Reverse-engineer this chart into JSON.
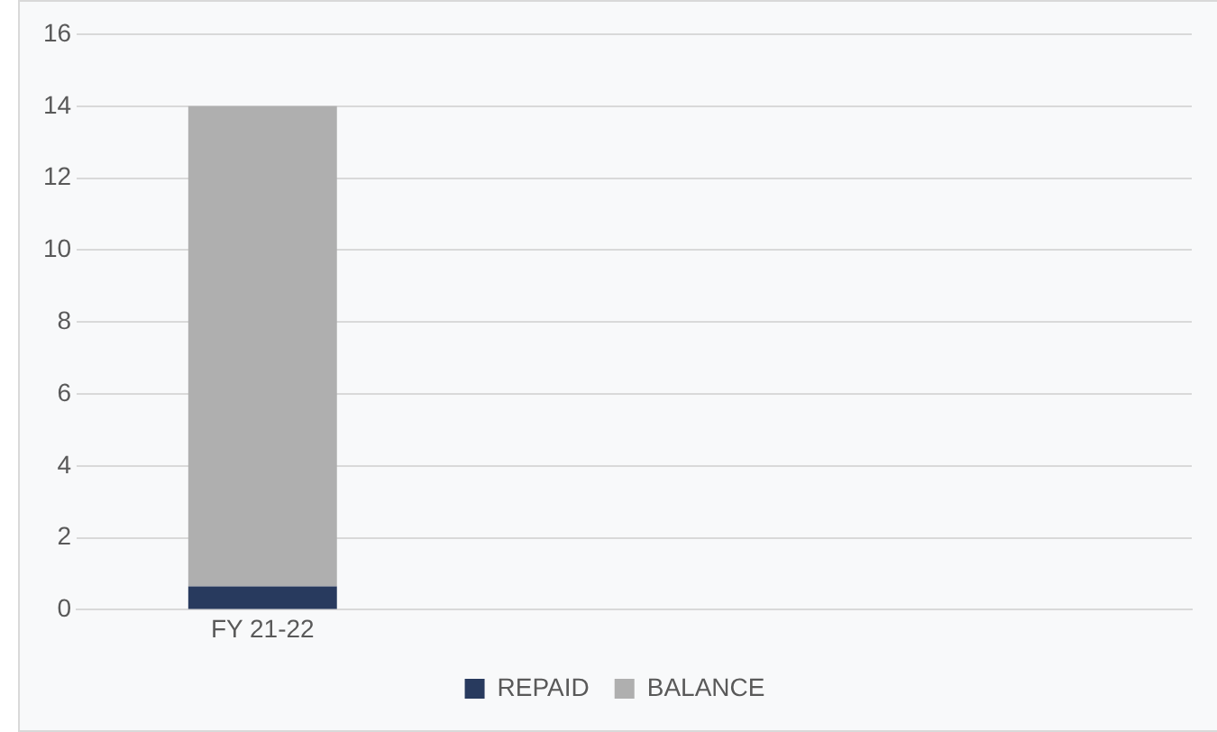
{
  "chart_data": {
    "type": "bar",
    "stacked": true,
    "categories": [
      "FY 21-22",
      null,
      null
    ],
    "series": [
      {
        "name": "REPAID",
        "color": "#283a5e",
        "values": [
          0.65,
          null,
          null
        ]
      },
      {
        "name": "BALANCE",
        "color": "#afafaf",
        "values": [
          13.35,
          null,
          null
        ]
      }
    ],
    "ylim": [
      0,
      16
    ],
    "yticks": [
      0,
      2,
      4,
      6,
      8,
      10,
      12,
      14,
      16
    ],
    "grid": "y",
    "legend": "bottom"
  }
}
